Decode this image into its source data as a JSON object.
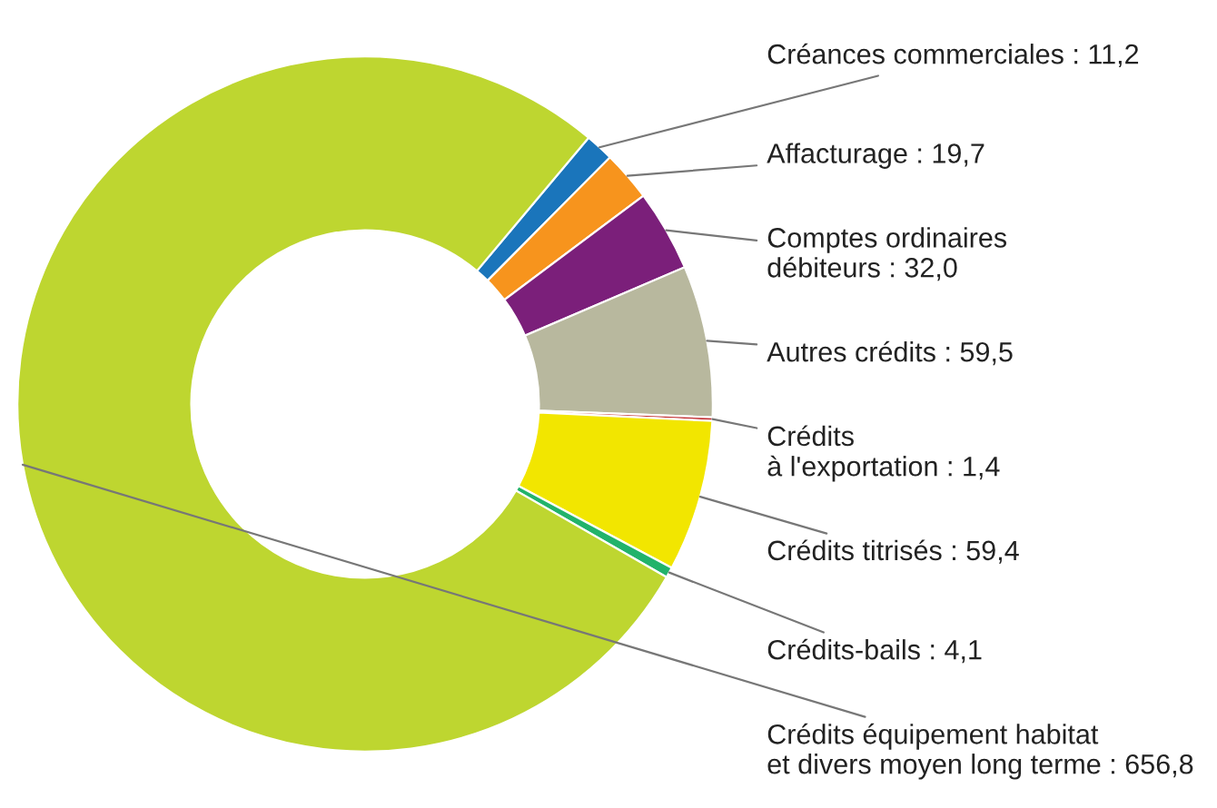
{
  "chart_data": {
    "type": "donut",
    "categories": [
      "Créances commerciales",
      "Affacturage",
      "Comptes ordinaires\ndébiteurs",
      "Autres crédits",
      "Crédits\nà l'exportation",
      "Crédits titrisés",
      "Crédits-bails",
      "Crédits équipement habitat\net divers moyen long terme"
    ],
    "values": [
      11.2,
      19.7,
      32.0,
      59.5,
      1.4,
      59.4,
      4.1,
      656.8
    ],
    "value_labels": [
      "11,2",
      "19,7",
      "32,0",
      "59,5",
      "1,4",
      "59,4",
      "4,1",
      "656,8"
    ],
    "colors": [
      "#1a75bb",
      "#f7941d",
      "#7b1f7a",
      "#b8b89e",
      "#c0282d",
      "#f2e600",
      "#22b36b",
      "#bed630"
    ]
  }
}
